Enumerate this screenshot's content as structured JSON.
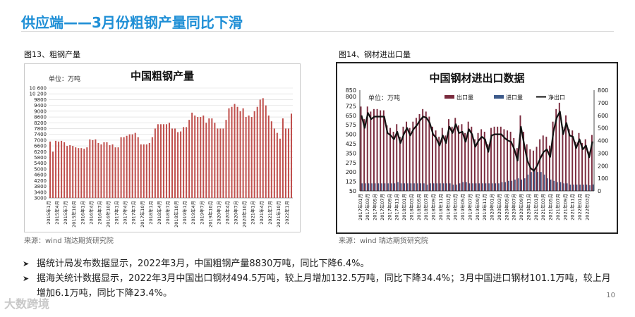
{
  "page": {
    "title": "供应端——3月份粗钢产量同比下滑",
    "page_number": "10",
    "watermark": "大数跨境",
    "bullets": [
      "据统计局发布数据显示，2022年3月，中国粗钢产量8830万吨，同比下降6.4%。",
      "据海关统计数据显示，2022年3月中国出口钢材494.5万吨，较上月增加132.5万吨，同比下降34.4%；3月中国进口钢材101.1万吨，较上月增加6.1万吨，同比下降23.4%。"
    ]
  },
  "chart_data": [
    {
      "type": "bar",
      "figure_label": "图13、粗钢产量",
      "title": "中国粗钢产量",
      "unit_label": "单位：万吨",
      "source": "来源：wind   瑞达期货研究院",
      "color": "#c0504d",
      "ylim": [
        3000,
        10600
      ],
      "yticks": [
        3000,
        3400,
        3800,
        4200,
        4600,
        5000,
        5400,
        5800,
        6200,
        6600,
        7000,
        7400,
        7800,
        8200,
        8600,
        9000,
        9400,
        9800,
        10200,
        10600
      ],
      "ytick_labels": [
        "3000",
        "3400",
        "3800",
        "4200",
        "4600",
        "5000",
        "5400",
        "5800",
        "6200",
        "6600",
        "7000",
        "7400",
        "7800",
        "8200",
        "8600",
        "9000",
        "9400",
        "9800",
        "10 200",
        "10 600"
      ],
      "xtick_labels": [
        "2015年1月",
        "2015年4月",
        "2015年7月",
        "2015年10月",
        "2016年1月",
        "2016年4月",
        "2016年7月",
        "2016年10月",
        "2017年1月",
        "2017年4月",
        "2017年7月",
        "2017年10月",
        "2018年1月",
        "2018年4月",
        "2018年7月",
        "2018年10月",
        "2019年1月",
        "2019年4月",
        "2019年7月",
        "2019年10月",
        "2020年1月",
        "2020年4月",
        "2020年7月",
        "2020年10月",
        "2021年1月",
        "2021年4月",
        "2021年7月",
        "2021年10月",
        "2022年1月"
      ],
      "values": [
        6900,
        6200,
        6950,
        6900,
        6950,
        6850,
        6600,
        6650,
        6600,
        6500,
        6450,
        6450,
        6400,
        6500,
        7050,
        7000,
        7050,
        6800,
        6700,
        6850,
        6850,
        6650,
        6700,
        6500,
        6500,
        7200,
        7200,
        7300,
        7400,
        7400,
        7500,
        7200,
        6700,
        6700,
        6700,
        6800,
        7200,
        7800,
        8100,
        8100,
        8100,
        8100,
        8200,
        7800,
        7800,
        7550,
        7600,
        7900,
        7900,
        8400,
        8900,
        8700,
        8600,
        8600,
        8700,
        8200,
        8500,
        8500,
        8200,
        7800,
        7800,
        7800,
        8400,
        9200,
        9300,
        9500,
        9300,
        9000,
        9200,
        8600,
        8700,
        8600,
        9000,
        9300,
        9800,
        9900,
        9400,
        8700,
        8300,
        7800,
        7500,
        7100,
        8500,
        7800,
        7800,
        8830
      ]
    },
    {
      "type": "bar+line",
      "figure_label": "图14、钢材进出口量",
      "title": "中国钢材进出口数据",
      "unit_label": "单位：万吨",
      "source": "来源：wind   瑞达期货研究院",
      "legend": [
        "出口量",
        "进口量",
        "净出口"
      ],
      "legend_position": "top",
      "colors": {
        "export": "#7a2b3e",
        "import": "#3d5a8a",
        "net": "#111111"
      },
      "ylim_left": [
        50,
        850
      ],
      "yticks_left": [
        50,
        125,
        200,
        275,
        350,
        425,
        500,
        575,
        650,
        725,
        800,
        850
      ],
      "ylim_right": [
        0,
        800
      ],
      "yticks_right": [
        0,
        100,
        200,
        300,
        400,
        500,
        600,
        700,
        800
      ],
      "xtick_labels": [
        "2017年01月",
        "2017年03月",
        "2017年05月",
        "2017年07月",
        "2017年09月",
        "2017年11月",
        "2018年01月",
        "2018年03月",
        "2018年05月",
        "2018年07月",
        "2018年09月",
        "2018年11月",
        "2019年01月",
        "2019年03月",
        "2019年05月",
        "2019年07月",
        "2019年09月",
        "2019年11月",
        "2020年01月",
        "2020年03月",
        "2020年05月",
        "2020年07月",
        "2020年09月",
        "2020年11月",
        "2021年01月",
        "2021年03月",
        "2021年05月",
        "2021年07月",
        "2021年09月",
        "2021年11月",
        "2022年01月",
        "2022年03月"
      ],
      "export": [
        720,
        620,
        720,
        680,
        700,
        700,
        690,
        690,
        570,
        550,
        520,
        580,
        480,
        560,
        600,
        550,
        600,
        630,
        660,
        700,
        680,
        640,
        560,
        530,
        480,
        550,
        490,
        620,
        560,
        630,
        570,
        580,
        510,
        600,
        560,
        460,
        510,
        540,
        520,
        420,
        550,
        560,
        560,
        560,
        540,
        530,
        520,
        470,
        390,
        650,
        520,
        420,
        380,
        370,
        400,
        460,
        490,
        480,
        410,
        600,
        700,
        750,
        560,
        650,
        540,
        530,
        440,
        510,
        430,
        460,
        362,
        494
      ],
      "import": [
        110,
        110,
        110,
        110,
        110,
        110,
        110,
        110,
        110,
        110,
        110,
        120,
        110,
        110,
        110,
        110,
        110,
        110,
        110,
        110,
        100,
        110,
        110,
        110,
        110,
        110,
        110,
        110,
        100,
        100,
        110,
        120,
        120,
        110,
        110,
        110,
        110,
        110,
        110,
        110,
        110,
        110,
        110,
        120,
        120,
        130,
        130,
        140,
        150,
        140,
        150,
        180,
        200,
        210,
        200,
        200,
        180,
        150,
        140,
        130,
        120,
        120,
        110,
        110,
        100,
        100,
        100,
        100,
        100,
        100,
        95,
        101
      ],
      "net": [
        600,
        500,
        620,
        570,
        590,
        590,
        590,
        590,
        460,
        440,
        410,
        470,
        380,
        450,
        500,
        440,
        490,
        520,
        560,
        590,
        580,
        540,
        450,
        420,
        360,
        440,
        380,
        510,
        460,
        530,
        460,
        470,
        390,
        490,
        450,
        350,
        400,
        430,
        410,
        310,
        440,
        450,
        450,
        450,
        420,
        400,
        390,
        330,
        240,
        510,
        370,
        240,
        180,
        160,
        200,
        260,
        310,
        330,
        270,
        470,
        580,
        630,
        450,
        540,
        440,
        430,
        340,
        410,
        330,
        360,
        267,
        393
      ]
    }
  ]
}
